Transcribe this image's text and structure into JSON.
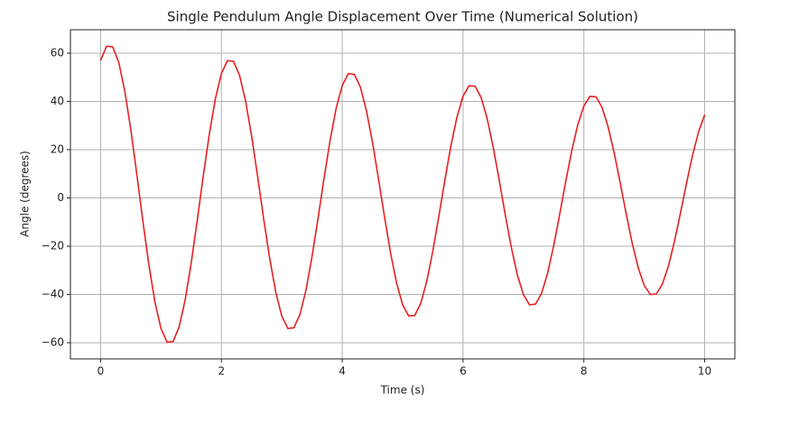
{
  "chart_data": {
    "type": "line",
    "title": "Single Pendulum Angle Displacement Over Time (Numerical Solution)",
    "x_label": "Time (s)",
    "y_label": "Angle (degrees)",
    "x": [
      0,
      0.1,
      0.2,
      0.3,
      0.4,
      0.5,
      0.6,
      0.7,
      0.8,
      0.9,
      1,
      1.1,
      1.2,
      1.3,
      1.4,
      1.5,
      1.6,
      1.7,
      1.8,
      1.9,
      2,
      2.1,
      2.2,
      2.3,
      2.4,
      2.5,
      2.6,
      2.7,
      2.8,
      2.9,
      3,
      3.1,
      3.2,
      3.3,
      3.4,
      3.5,
      3.6,
      3.7,
      3.8,
      3.9,
      4,
      4.1,
      4.2,
      4.3,
      4.4,
      4.5,
      4.6,
      4.7,
      4.8,
      4.9,
      5,
      5.1,
      5.2,
      5.3,
      5.4,
      5.5,
      5.6,
      5.7,
      5.8,
      5.9,
      6,
      6.1,
      6.2,
      6.3,
      6.4,
      6.5,
      6.6,
      6.7,
      6.8,
      6.9,
      7,
      7.1,
      7.2,
      7.3,
      7.4,
      7.5,
      7.6,
      7.7,
      7.8,
      7.9,
      8,
      8.1,
      8.2,
      8.3,
      8.4,
      8.5,
      8.6,
      8.7,
      8.8,
      8.9,
      9,
      9.1,
      9.2,
      9.3,
      9.4,
      9.5,
      9.6,
      9.7,
      9.8,
      9.9,
      10
    ],
    "series": [
      {
        "color": "#e62020",
        "values": [
          57.0,
          62.9,
          62.6,
          56.2,
          44.3,
          28.3,
          9.7,
          -9.7,
          -27.9,
          -43.2,
          -54.2,
          -59.8,
          -59.5,
          -53.4,
          -42.2,
          -26.9,
          -9.2,
          9.2,
          26.5,
          41.1,
          51.6,
          56.9,
          56.6,
          50.8,
          40.1,
          25.6,
          8.8,
          -8.8,
          -25.2,
          -39.1,
          -49.0,
          -54.1,
          -53.8,
          -48.3,
          -38.2,
          -24.3,
          -8.3,
          8.3,
          24.0,
          37.2,
          46.6,
          51.5,
          51.2,
          46.0,
          36.2,
          23.2,
          7.9,
          -7.9,
          -22.8,
          -35.3,
          -44.3,
          -48.9,
          -48.7,
          -43.7,
          -34.5,
          -22.0,
          -7.5,
          7.5,
          21.7,
          33.6,
          42.2,
          46.5,
          46.3,
          41.6,
          32.8,
          20.9,
          7.2,
          -7.2,
          -20.6,
          -32.0,
          -40.1,
          -44.3,
          -44.0,
          -39.5,
          -31.2,
          -19.9,
          -6.8,
          6.8,
          19.6,
          30.4,
          38.1,
          42.1,
          41.9,
          37.6,
          29.6,
          18.9,
          6.5,
          -6.5,
          -18.7,
          -28.9,
          -36.3,
          -40.0,
          -39.8,
          -35.7,
          -28.2,
          -18.0,
          -6.2,
          6.2,
          17.7,
          27.5,
          34.5
        ]
      }
    ],
    "xlim": [
      -0.5,
      10.5
    ],
    "ylim": [
      -66.7,
      69.7
    ],
    "xticks": [
      0,
      2,
      4,
      6,
      8,
      10
    ],
    "yticks": [
      {
        "value": -60,
        "label": "−60"
      },
      {
        "value": -40,
        "label": "−40"
      },
      {
        "value": -20,
        "label": "−20"
      },
      0,
      20,
      40,
      60
    ],
    "grid": true
  }
}
